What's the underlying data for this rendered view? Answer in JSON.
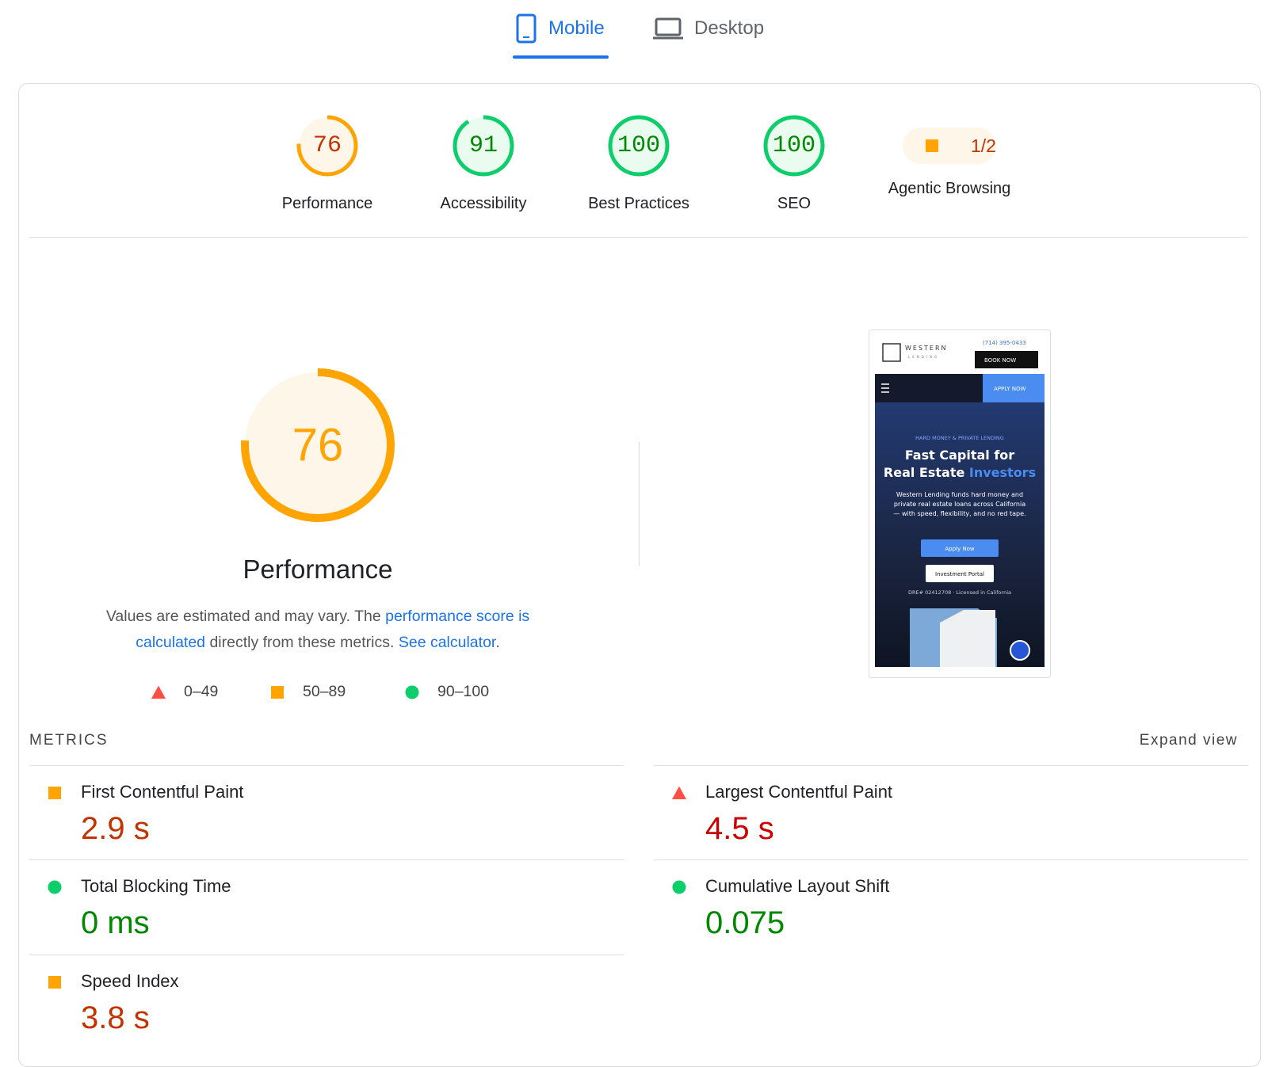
{
  "tabs": [
    {
      "label": "Mobile",
      "active": true
    },
    {
      "label": "Desktop",
      "active": false
    }
  ],
  "scores": [
    {
      "value": 76,
      "label": "Performance",
      "rating": "average"
    },
    {
      "value": 91,
      "label": "Accessibility",
      "rating": "pass"
    },
    {
      "value": 100,
      "label": "Best Practices",
      "rating": "pass"
    },
    {
      "value": 100,
      "label": "SEO",
      "rating": "pass"
    },
    {
      "value": "1/2",
      "label": "Agentic Browsing",
      "rating": "average"
    }
  ],
  "performance": {
    "score": 76,
    "rating": "average",
    "title": "Performance",
    "description": {
      "text1": "Values are estimated and may vary. The ",
      "link1": "performance score is calculated",
      "text2": " directly from these metrics. ",
      "link2": "See calculator",
      "text3": "."
    },
    "legend": [
      {
        "label": "0–49",
        "rating": "fail"
      },
      {
        "label": "50–89",
        "rating": "average"
      },
      {
        "label": "90–100",
        "rating": "pass"
      }
    ]
  },
  "screenshot": {
    "brand": "WESTERN",
    "brand_sub": "LENDING",
    "phone": "(714) 395-0433",
    "book": "BOOK NOW",
    "apply_nav": "APPLY NOW",
    "eyebrow": "HARD MONEY & PRIVATE LENDING",
    "headline1": "Fast Capital for",
    "headline2a": "Real Estate ",
    "headline2b": "Investors",
    "body": [
      "Western Lending funds hard money and",
      "private real estate loans across California",
      "— with speed, flexibility, and no red tape."
    ],
    "button1": "Apply Now",
    "button2": "Investment Portal",
    "license": "DRE# 02412708 · Licensed in California"
  },
  "metrics": {
    "heading": "METRICS",
    "expand": "Expand view",
    "items": [
      {
        "name": "First Contentful Paint",
        "value": "2.9 s",
        "rating": "average"
      },
      {
        "name": "Largest Contentful Paint",
        "value": "4.5 s",
        "rating": "fail"
      },
      {
        "name": "Total Blocking Time",
        "value": "0 ms",
        "rating": "pass"
      },
      {
        "name": "Cumulative Layout Shift",
        "value": "0.075",
        "rating": "pass"
      },
      {
        "name": "Speed Index",
        "value": "3.8 s",
        "rating": "average"
      }
    ]
  }
}
